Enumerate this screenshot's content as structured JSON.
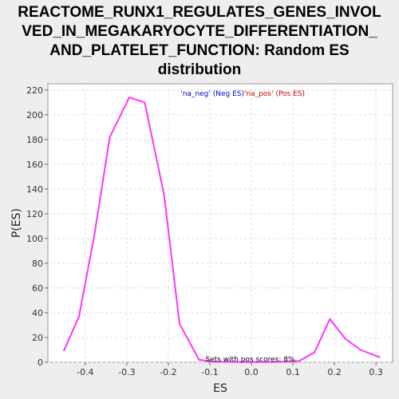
{
  "title_lines": [
    "REACTOME_RUNX1_REGULATES_GENES_INVOL",
    "VED_IN_MEGAKARYOCYTE_DIFFERENTIATION_",
    "AND_PLATELET_FUNCTION: Random ES",
    "distribution"
  ],
  "chart_data": {
    "type": "line",
    "title": "REACTOME_RUNX1_REGULATES_GENES_INVOLVED_IN_MEGAKARYOCYTE_DIFFERENTIATION_AND_PLATELET_FUNCTION: Random ES distribution",
    "xlabel": "ES",
    "ylabel": "P(ES)",
    "xlim": [
      -0.49,
      0.34
    ],
    "ylim": [
      0,
      225
    ],
    "x_ticks": [
      -0.4,
      -0.3,
      -0.2,
      -0.1,
      0.0,
      0.1,
      0.2,
      0.3
    ],
    "x_tick_labels": [
      "-0.4",
      "-0.3",
      "-0.2",
      "-0.1",
      "0.0",
      "0.1",
      "0.2",
      "0.3"
    ],
    "y_ticks": [
      0,
      20,
      40,
      60,
      80,
      100,
      120,
      140,
      160,
      180,
      200,
      220
    ],
    "y_tick_labels": [
      "0",
      "20",
      "40",
      "60",
      "80",
      "100",
      "120",
      "140",
      "160",
      "180",
      "200",
      "220"
    ],
    "grid": true,
    "legend": {
      "placement": "top-center",
      "entries": [
        {
          "label": "'na_neg' (Neg ES)",
          "color": "#0000cc"
        },
        {
          "label": "'na_pos' (Pos ES)",
          "color": "#cc0000"
        }
      ]
    },
    "annotation": "Sets with pos scores: 8%",
    "series": [
      {
        "color": "#ff33ff",
        "x": [
          -0.452,
          -0.415,
          -0.378,
          -0.341,
          -0.294,
          -0.257,
          -0.21,
          -0.173,
          -0.126,
          -0.089,
          -0.05,
          0.0,
          0.05,
          0.115,
          0.152,
          0.189,
          0.226,
          0.263,
          0.31
        ],
        "y": [
          9,
          37,
          103,
          182,
          214,
          210,
          135,
          31,
          2,
          0.5,
          0.3,
          0.2,
          0.2,
          1,
          8,
          35,
          19,
          10,
          4
        ]
      }
    ]
  },
  "colors": {
    "background": "#eeeeee",
    "plot_background": "#ffffff",
    "grid": "#dddddd",
    "series": "#ff33ff"
  }
}
